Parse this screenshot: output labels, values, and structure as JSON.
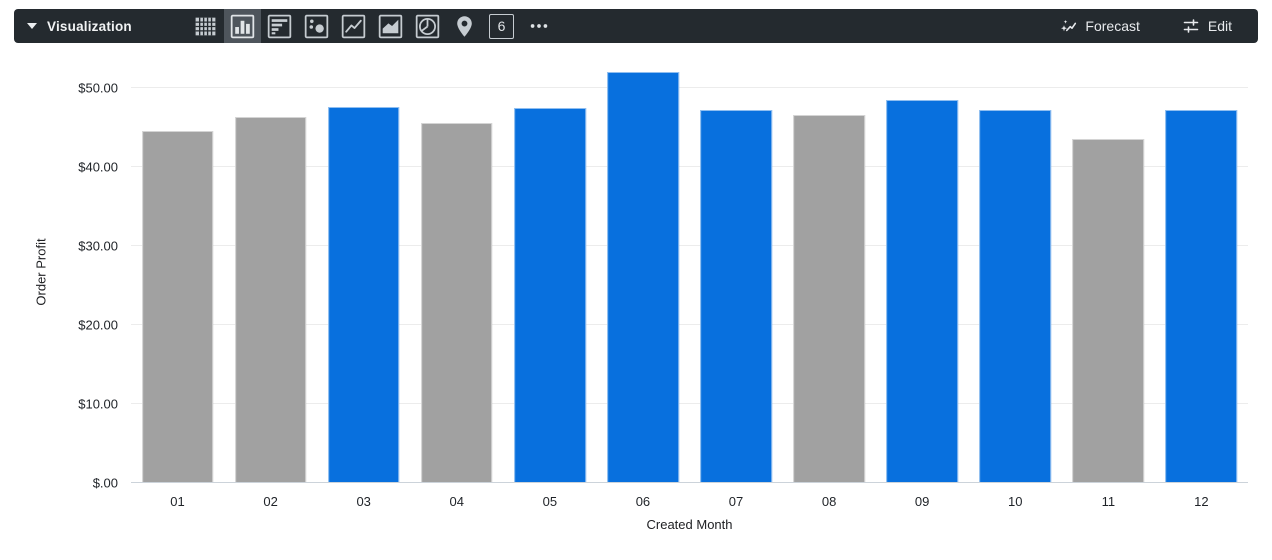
{
  "toolbar": {
    "title": "Visualization",
    "viz_types": [
      {
        "name": "table",
        "selected": false
      },
      {
        "name": "column-chart",
        "selected": true
      },
      {
        "name": "row-chart",
        "selected": false
      },
      {
        "name": "scatter",
        "selected": false
      },
      {
        "name": "line-chart",
        "selected": false
      },
      {
        "name": "area-chart",
        "selected": false
      },
      {
        "name": "pie-chart",
        "selected": false
      },
      {
        "name": "map",
        "selected": false
      },
      {
        "name": "single-value",
        "selected": false
      },
      {
        "name": "more-options",
        "selected": false
      }
    ],
    "single_value_icon_text": "6",
    "forecast_label": "Forecast",
    "edit_label": "Edit"
  },
  "chart_data": {
    "type": "bar",
    "title": "",
    "xlabel": "Created Month",
    "ylabel": "Order Profit",
    "categories": [
      "01",
      "02",
      "03",
      "04",
      "05",
      "06",
      "07",
      "08",
      "09",
      "10",
      "11",
      "12"
    ],
    "values": [
      44.6,
      46.4,
      47.6,
      45.6,
      47.5,
      52.0,
      47.2,
      46.6,
      48.5,
      47.2,
      43.6,
      47.2
    ],
    "bar_colors": [
      "gray",
      "gray",
      "blue",
      "gray",
      "blue",
      "blue",
      "blue",
      "gray",
      "blue",
      "blue",
      "gray",
      "blue"
    ],
    "colors": {
      "blue": "#0870de",
      "gray": "#a1a1a1"
    },
    "ylim": [
      0,
      53.3
    ],
    "yticks": [
      {
        "value": 0,
        "label": "$.00"
      },
      {
        "value": 10,
        "label": "$10.00"
      },
      {
        "value": 20,
        "label": "$20.00"
      },
      {
        "value": 30,
        "label": "$30.00"
      },
      {
        "value": 40,
        "label": "$40.00"
      },
      {
        "value": 50,
        "label": "$50.00"
      }
    ],
    "grid": true,
    "legend": "none"
  }
}
